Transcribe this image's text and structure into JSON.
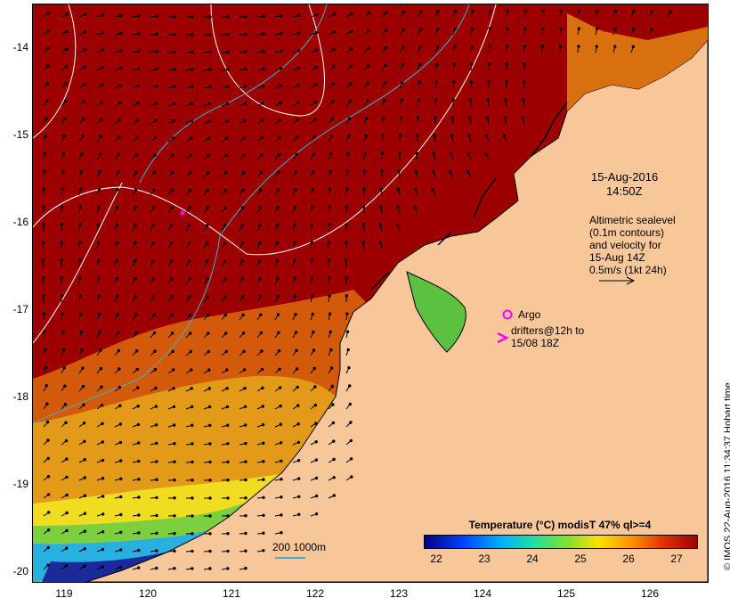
{
  "map": {
    "y_axis_labels": [
      "-14",
      "-15",
      "-16",
      "-17",
      "-18",
      "-19",
      "-20"
    ],
    "x_axis_labels": [
      "119",
      "120",
      "121",
      "122",
      "123",
      "124",
      "125",
      "126"
    ],
    "colors": {
      "land": "#f7c79a",
      "warm_sea": "#9c0000",
      "coast": "#000000",
      "contour": "#ffffff",
      "isobath": "#40b0c8",
      "argo": "#ff00ff"
    }
  },
  "annotations": {
    "datetime_line1": "15-Aug-2016",
    "datetime_line2": "14:50Z",
    "altimetry_lines": [
      "Altimetric sealevel",
      "(0.1m contours)",
      "and velocity for",
      "15-Aug 14Z",
      "0.5m/s (1kt 24h)"
    ],
    "argo_label": "Argo",
    "drifters_line1": "drifters@12h to",
    "drifters_line2": "15/08 18Z",
    "depth_label": "200  1000m"
  },
  "legend": {
    "title": "Temperature (°C) modisT 47% ql>=4",
    "ticks": [
      "22",
      "23",
      "24",
      "25",
      "26",
      "27"
    ]
  },
  "credit": "© IMOS 22-Aug-2016 11:34:37 Hobart time"
}
